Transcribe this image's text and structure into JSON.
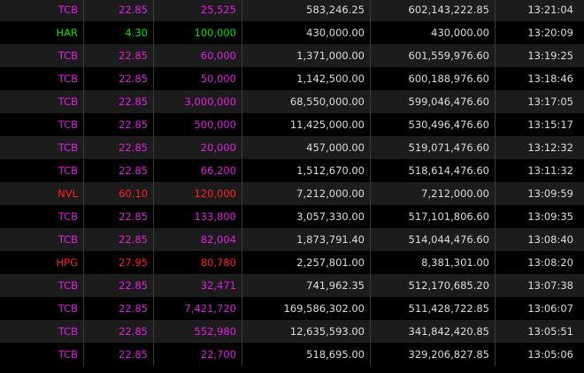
{
  "colors": {
    "up_ceiling": "#e020e0",
    "up": "#00e000",
    "down": "#ff2020",
    "neutral": "#dcdcdc"
  },
  "rows": [
    {
      "symbol": "TCB",
      "price": "22.85",
      "volume": "25,525",
      "value": "583,246.25",
      "total": "602,143,222.85",
      "time": "13:21:04",
      "color": "#e020e0"
    },
    {
      "symbol": "HAR",
      "price": "4.30",
      "volume": "100,000",
      "value": "430,000.00",
      "total": "430,000.00",
      "time": "13:20:09",
      "color": "#00e000"
    },
    {
      "symbol": "TCB",
      "price": "22.85",
      "volume": "60,000",
      "value": "1,371,000.00",
      "total": "601,559,976.60",
      "time": "13:19:25",
      "color": "#e020e0"
    },
    {
      "symbol": "TCB",
      "price": "22.85",
      "volume": "50,000",
      "value": "1,142,500.00",
      "total": "600,188,976.60",
      "time": "13:18:46",
      "color": "#e020e0"
    },
    {
      "symbol": "TCB",
      "price": "22.85",
      "volume": "3,000,000",
      "value": "68,550,000.00",
      "total": "599,046,476.60",
      "time": "13:17:05",
      "color": "#e020e0"
    },
    {
      "symbol": "TCB",
      "price": "22.85",
      "volume": "500,000",
      "value": "11,425,000.00",
      "total": "530,496,476.60",
      "time": "13:15:17",
      "color": "#e020e0"
    },
    {
      "symbol": "TCB",
      "price": "22.85",
      "volume": "20,000",
      "value": "457,000.00",
      "total": "519,071,476.60",
      "time": "13:12:32",
      "color": "#e020e0"
    },
    {
      "symbol": "TCB",
      "price": "22.85",
      "volume": "66,200",
      "value": "1,512,670.00",
      "total": "518,614,476.60",
      "time": "13:11:32",
      "color": "#e020e0"
    },
    {
      "symbol": "NVL",
      "price": "60.10",
      "volume": "120,000",
      "value": "7,212,000.00",
      "total": "7,212,000.00",
      "time": "13:09:59",
      "color": "#ff2020"
    },
    {
      "symbol": "TCB",
      "price": "22.85",
      "volume": "133,800",
      "value": "3,057,330.00",
      "total": "517,101,806.60",
      "time": "13:09:35",
      "color": "#e020e0"
    },
    {
      "symbol": "TCB",
      "price": "22.85",
      "volume": "82,004",
      "value": "1,873,791.40",
      "total": "514,044,476.60",
      "time": "13:08:40",
      "color": "#e020e0"
    },
    {
      "symbol": "HPG",
      "price": "27.95",
      "volume": "80,780",
      "value": "2,257,801.00",
      "total": "8,381,301.00",
      "time": "13:08:20",
      "color": "#ff2020"
    },
    {
      "symbol": "TCB",
      "price": "22.85",
      "volume": "32,471",
      "value": "741,962.35",
      "total": "512,170,685.20",
      "time": "13:07:38",
      "color": "#e020e0"
    },
    {
      "symbol": "TCB",
      "price": "22.85",
      "volume": "7,421,720",
      "value": "169,586,302.00",
      "total": "511,428,722.85",
      "time": "13:06:07",
      "color": "#e020e0"
    },
    {
      "symbol": "TCB",
      "price": "22.85",
      "volume": "552,980",
      "value": "12,635,593.00",
      "total": "341,842,420.85",
      "time": "13:05:51",
      "color": "#e020e0"
    },
    {
      "symbol": "TCB",
      "price": "22.85",
      "volume": "22,700",
      "value": "518,695.00",
      "total": "329,206,827.85",
      "time": "13:05:06",
      "color": "#e020e0"
    }
  ]
}
